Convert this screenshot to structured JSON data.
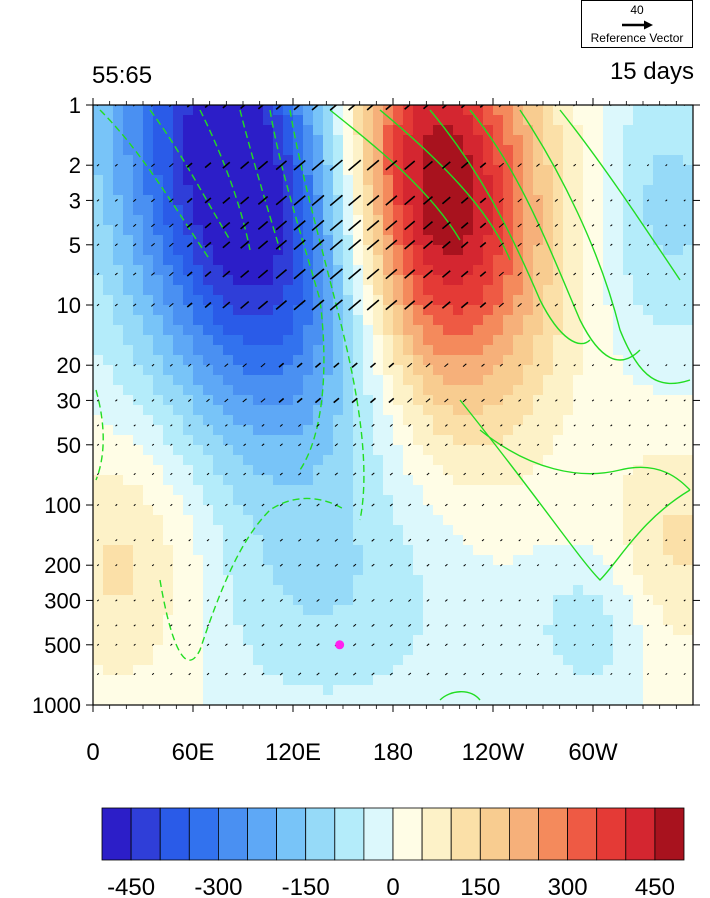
{
  "title_left": "55:65",
  "title_right": "15 days",
  "reference": {
    "value": "40",
    "label": "Reference Vector"
  },
  "colors": {
    "levels": [
      -500,
      -450,
      -400,
      -350,
      -300,
      -250,
      -200,
      -150,
      -100,
      -50,
      0,
      50,
      100,
      150,
      200,
      250,
      300,
      350,
      400,
      450,
      500
    ],
    "fill": [
      "#2c1ec8",
      "#2f3ed8",
      "#2a5be8",
      "#3272ee",
      "#4a90f2",
      "#5ea8f6",
      "#78c4f8",
      "#96daf8",
      "#b4ecfa",
      "#dcf8fc",
      "#fffde6",
      "#fdf2c8",
      "#fbe0a8",
      "#f8cc90",
      "#f6b07a",
      "#f48a5c",
      "#ee5a44",
      "#e43a36",
      "#d42630",
      "#a8121e"
    ]
  },
  "chart_data": {
    "type": "heatmap",
    "x_ticks": [
      "0",
      "60E",
      "120E",
      "180",
      "120W",
      "60W"
    ],
    "x_tick_lon": [
      0,
      60,
      120,
      180,
      240,
      300
    ],
    "xlim": [
      0,
      360
    ],
    "y_ticks": [
      "1",
      "2",
      "3",
      "5",
      "10",
      "20",
      "30",
      "50",
      "100",
      "200",
      "300",
      "500",
      "1000"
    ],
    "y_tick_values": [
      1,
      2,
      3,
      5,
      10,
      20,
      30,
      50,
      100,
      200,
      300,
      500,
      1000
    ],
    "ylim": [
      1,
      1000
    ],
    "y_scale": "log",
    "colorbar_ticks": [
      "-450",
      "-300",
      "-150",
      "0",
      "150",
      "300",
      "450"
    ],
    "marker": {
      "lon": 148,
      "p": 500,
      "color": "#ff22ee"
    },
    "contour_color": "#22dd22"
  }
}
